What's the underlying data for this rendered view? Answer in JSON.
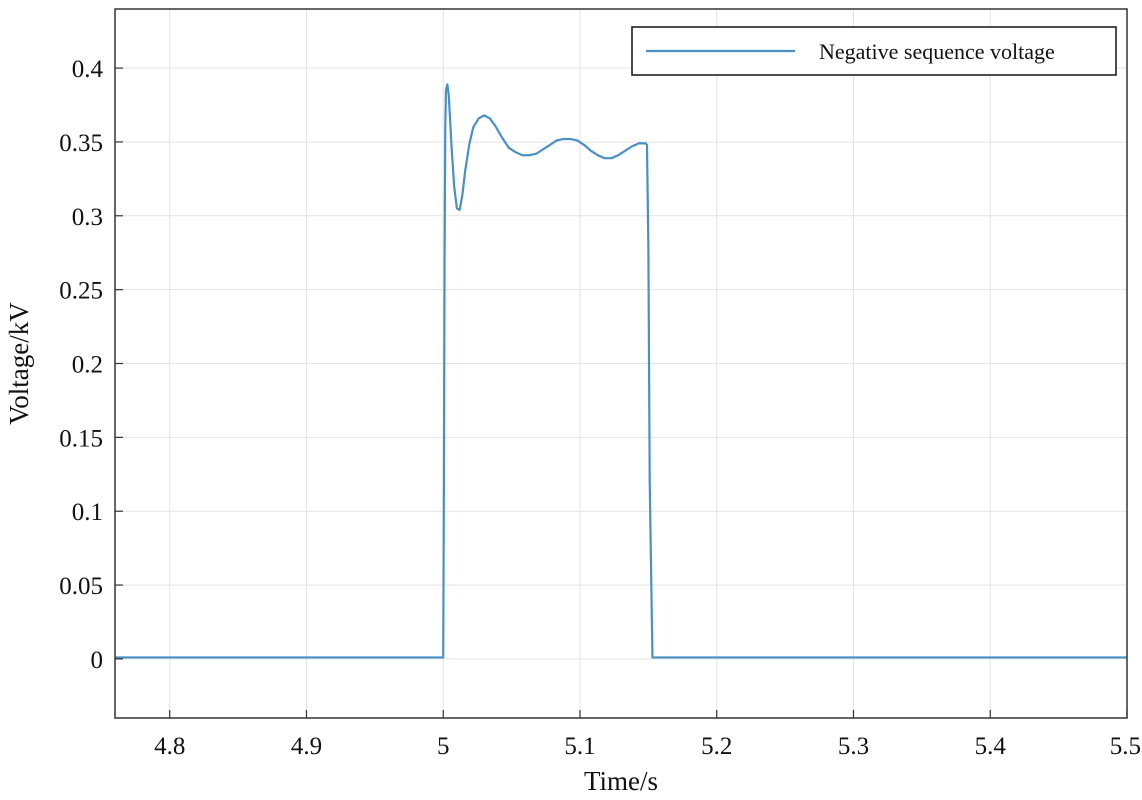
{
  "chart_data": {
    "type": "line",
    "title": "",
    "xlabel": "Time/s",
    "ylabel": "Voltage/kV",
    "xlim": [
      4.76,
      5.5
    ],
    "ylim": [
      -0.04,
      0.44
    ],
    "xticks": [
      4.8,
      4.9,
      5.0,
      5.1,
      5.2,
      5.3,
      5.4,
      5.5
    ],
    "xtick_labels": [
      "4.8",
      "4.9",
      "5",
      "5.1",
      "5.2",
      "5.3",
      "5.4",
      "5.5"
    ],
    "yticks": [
      0,
      0.05,
      0.1,
      0.15,
      0.2,
      0.25,
      0.3,
      0.35,
      0.4
    ],
    "ytick_labels": [
      "0",
      "0.05",
      "0.1",
      "0.15",
      "0.2",
      "0.25",
      "0.3",
      "0.35",
      "0.4"
    ],
    "grid": true,
    "legend_position": "top-right",
    "series": [
      {
        "name": "Negative sequence voltage",
        "color": "#4a90c2",
        "x": [
          4.76,
          5.0,
          5.0005,
          5.001,
          5.0015,
          5.002,
          5.003,
          5.004,
          5.005,
          5.006,
          5.008,
          5.01,
          5.012,
          5.014,
          5.016,
          5.019,
          5.022,
          5.026,
          5.03,
          5.034,
          5.038,
          5.043,
          5.048,
          5.053,
          5.058,
          5.063,
          5.068,
          5.073,
          5.078,
          5.083,
          5.088,
          5.093,
          5.098,
          5.103,
          5.108,
          5.113,
          5.118,
          5.123,
          5.128,
          5.133,
          5.138,
          5.143,
          5.148,
          5.149,
          5.15,
          5.151,
          5.153,
          5.5
        ],
        "y": [
          0.001,
          0.001,
          0.12,
          0.27,
          0.36,
          0.385,
          0.389,
          0.382,
          0.366,
          0.348,
          0.32,
          0.305,
          0.304,
          0.314,
          0.33,
          0.348,
          0.36,
          0.366,
          0.368,
          0.366,
          0.361,
          0.353,
          0.346,
          0.343,
          0.341,
          0.341,
          0.342,
          0.345,
          0.348,
          0.351,
          0.352,
          0.352,
          0.351,
          0.348,
          0.344,
          0.341,
          0.339,
          0.339,
          0.341,
          0.344,
          0.347,
          0.349,
          0.349,
          0.348,
          0.28,
          0.12,
          0.001,
          0.001
        ]
      }
    ]
  }
}
